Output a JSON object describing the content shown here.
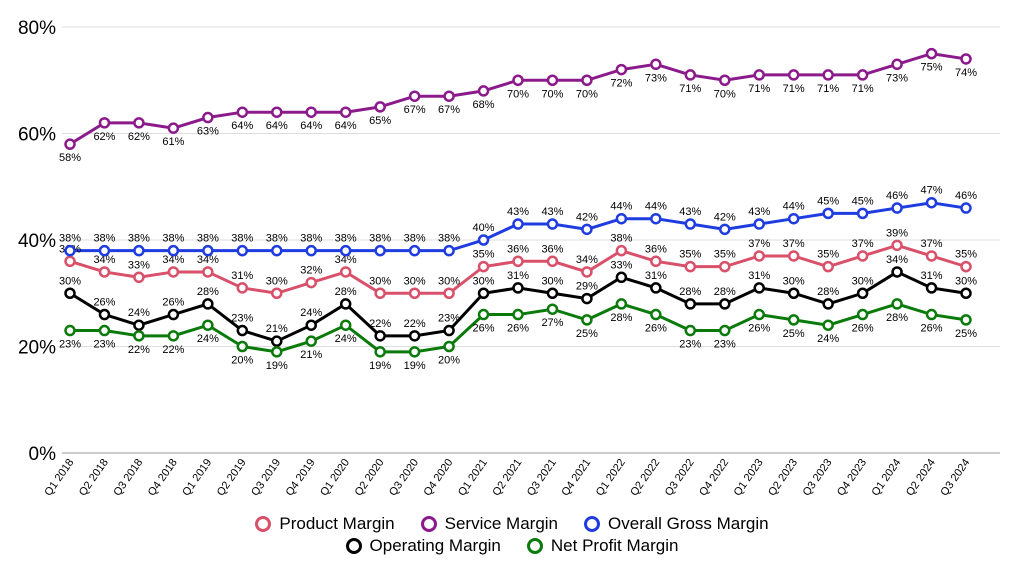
{
  "chart_data": {
    "type": "line",
    "categories": [
      "Q1 2018",
      "Q2 2018",
      "Q3 2018",
      "Q4 2018",
      "Q1 2019",
      "Q2 2019",
      "Q3 2019",
      "Q4 2019",
      "Q1 2020",
      "Q2 2020",
      "Q3 2020",
      "Q4 2020",
      "Q1 2021",
      "Q2 2021",
      "Q3 2021",
      "Q4 2021",
      "Q1 2022",
      "Q2 2022",
      "Q3 2022",
      "Q4 2022",
      "Q1 2023",
      "Q2 2023",
      "Q3 2023",
      "Q4 2023",
      "Q1 2024",
      "Q2 2024",
      "Q3 2024"
    ],
    "ylim": [
      0,
      80
    ],
    "yticks": [
      "0%",
      "20%",
      "40%",
      "60%",
      "80%"
    ],
    "grid": true,
    "legend_position": "bottom",
    "series": [
      {
        "name": "Product Margin",
        "color": "#d9506a",
        "label_pos": "above",
        "values": [
          36,
          34,
          33,
          34,
          34,
          31,
          30,
          32,
          34,
          30,
          30,
          30,
          35,
          36,
          36,
          34,
          38,
          36,
          35,
          35,
          37,
          37,
          35,
          37,
          39,
          37,
          35
        ]
      },
      {
        "name": "Service Margin",
        "color": "#8b1a8b",
        "label_pos": "below",
        "values": [
          58,
          62,
          62,
          61,
          63,
          64,
          64,
          64,
          64,
          65,
          67,
          67,
          68,
          70,
          70,
          70,
          72,
          73,
          71,
          70,
          71,
          71,
          71,
          71,
          73,
          75,
          74
        ]
      },
      {
        "name": "Overall Gross Margin",
        "color": "#1f3ce0",
        "label_pos": "above",
        "values": [
          38,
          38,
          38,
          38,
          38,
          38,
          38,
          38,
          38,
          38,
          38,
          38,
          40,
          43,
          43,
          42,
          44,
          44,
          43,
          42,
          43,
          44,
          45,
          45,
          46,
          47,
          46
        ]
      },
      {
        "name": "Operating Margin",
        "color": "#000000",
        "label_pos": "above",
        "values": [
          30,
          26,
          24,
          26,
          28,
          23,
          21,
          24,
          28,
          22,
          22,
          23,
          30,
          31,
          30,
          29,
          33,
          31,
          28,
          28,
          31,
          30,
          28,
          30,
          34,
          31,
          30
        ]
      },
      {
        "name": "Net Profit Margin",
        "color": "#0a7a0a",
        "label_pos": "below",
        "values": [
          23,
          23,
          22,
          22,
          24,
          20,
          19,
          21,
          24,
          19,
          19,
          20,
          26,
          26,
          27,
          25,
          28,
          26,
          23,
          23,
          26,
          25,
          24,
          26,
          28,
          26,
          25
        ]
      }
    ]
  }
}
